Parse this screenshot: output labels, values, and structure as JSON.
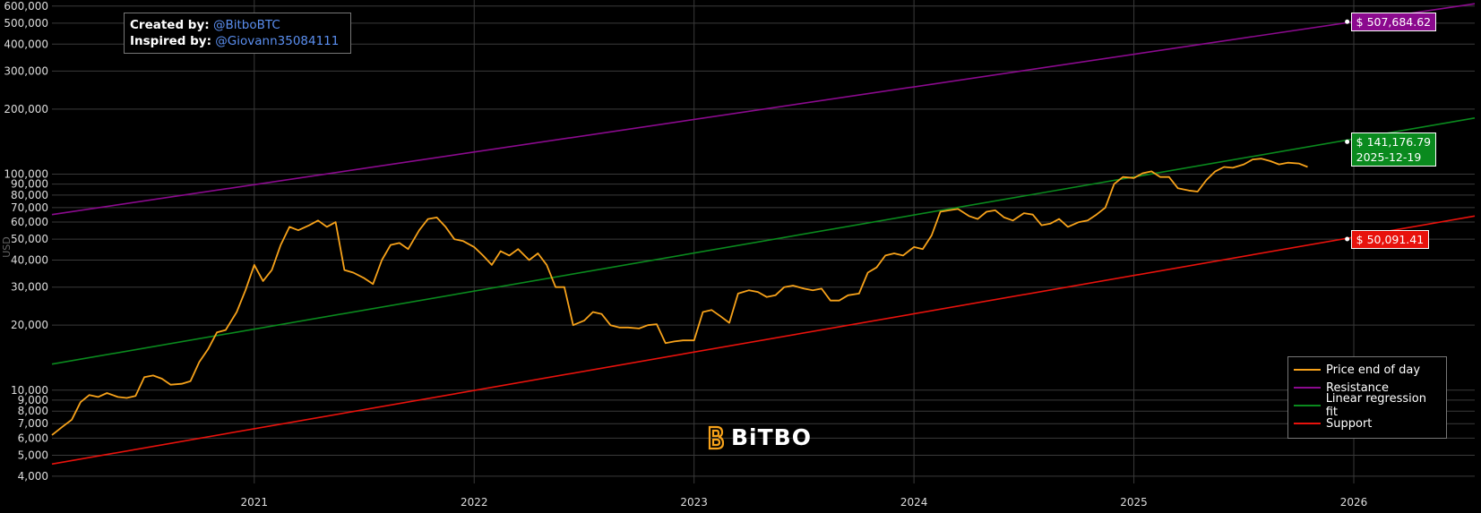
{
  "credits": {
    "created_label": "Created by:",
    "created_handle": "@BitboBTC",
    "inspired_label": "Inspired by:",
    "inspired_handle": "@Giovann35084111"
  },
  "brand": {
    "logo_text": "BiTBO"
  },
  "tags": {
    "resistance": "$ 507,684.62",
    "regression_value": "$ 141,176.79",
    "regression_date": "2025-12-19",
    "support": "$ 50,091.41"
  },
  "colors": {
    "price": "#f7a21a",
    "resistance": "#8b0a8e",
    "regression": "#0a8a1e",
    "support": "#e8120c",
    "grid": "#3a3a3a"
  },
  "chart_data": {
    "type": "line",
    "title": "",
    "xlabel": "",
    "ylabel": "USD",
    "yscale": "log",
    "xlim": [
      2020.08,
      2026.55
    ],
    "ylim": [
      3700,
      640000
    ],
    "grid": true,
    "legend_position": "bottom-right",
    "x_ticks": [
      "2021",
      "2022",
      "2023",
      "2024",
      "2025",
      "2026"
    ],
    "y_ticks": [
      "4,000",
      "5,000",
      "6,000",
      "7,000",
      "8,000",
      "9,000",
      "10,000",
      "20,000",
      "30,000",
      "40,000",
      "50,000",
      "60,000",
      "70,000",
      "80,000",
      "90,000",
      "100,000",
      "200,000",
      "300,000",
      "400,000",
      "500,000",
      "600,000"
    ],
    "legend": [
      "Price end of day",
      "Resistance",
      "Linear regression fit",
      "Support"
    ],
    "series": [
      {
        "name": "Price end of day",
        "x": [
          2020.08,
          2020.13,
          2020.17,
          2020.21,
          2020.25,
          2020.29,
          2020.33,
          2020.38,
          2020.42,
          2020.46,
          2020.5,
          2020.54,
          2020.58,
          2020.62,
          2020.67,
          2020.71,
          2020.75,
          2020.79,
          2020.83,
          2020.87,
          2020.92,
          2020.96,
          2021.0,
          2021.04,
          2021.08,
          2021.12,
          2021.16,
          2021.2,
          2021.25,
          2021.29,
          2021.33,
          2021.37,
          2021.41,
          2021.45,
          2021.5,
          2021.54,
          2021.58,
          2021.62,
          2021.66,
          2021.7,
          2021.75,
          2021.79,
          2021.83,
          2021.87,
          2021.91,
          2021.95,
          2022.0,
          2022.04,
          2022.08,
          2022.12,
          2022.16,
          2022.2,
          2022.25,
          2022.29,
          2022.33,
          2022.37,
          2022.41,
          2022.45,
          2022.5,
          2022.54,
          2022.58,
          2022.62,
          2022.66,
          2022.7,
          2022.75,
          2022.79,
          2022.83,
          2022.87,
          2022.91,
          2022.95,
          2023.0,
          2023.04,
          2023.08,
          2023.12,
          2023.16,
          2023.2,
          2023.25,
          2023.29,
          2023.33,
          2023.37,
          2023.41,
          2023.45,
          2023.5,
          2023.54,
          2023.58,
          2023.62,
          2023.66,
          2023.7,
          2023.75,
          2023.79,
          2023.83,
          2023.87,
          2023.91,
          2023.95,
          2024.0,
          2024.04,
          2024.08,
          2024.12,
          2024.16,
          2024.2,
          2024.25,
          2024.29,
          2024.33,
          2024.37,
          2024.41,
          2024.45,
          2024.5,
          2024.54,
          2024.58,
          2024.62,
          2024.66,
          2024.7,
          2024.75,
          2024.79,
          2024.83,
          2024.87,
          2024.91,
          2024.95,
          2025.0,
          2025.04,
          2025.08,
          2025.12,
          2025.16,
          2025.2,
          2025.25,
          2025.29,
          2025.33,
          2025.37,
          2025.41,
          2025.45,
          2025.5,
          2025.54,
          2025.58,
          2025.62,
          2025.66,
          2025.7,
          2025.75,
          2025.79
        ],
        "y": [
          6200,
          6800,
          7300,
          8800,
          9500,
          9300,
          9700,
          9300,
          9200,
          9400,
          11500,
          11700,
          11300,
          10600,
          10700,
          11000,
          13500,
          15500,
          18500,
          19000,
          23000,
          29000,
          38000,
          32000,
          36000,
          47000,
          57000,
          55000,
          58000,
          61000,
          57000,
          60000,
          36000,
          35000,
          33000,
          31000,
          40000,
          47000,
          48000,
          45000,
          55000,
          62000,
          63000,
          57000,
          50000,
          49000,
          46000,
          42000,
          38000,
          44000,
          42000,
          45000,
          40000,
          43000,
          38000,
          30000,
          30000,
          20000,
          21000,
          23000,
          22500,
          20000,
          19500,
          19500,
          19300,
          20000,
          20200,
          16500,
          16800,
          17000,
          17000,
          23000,
          23500,
          22000,
          20500,
          28000,
          29000,
          28500,
          27000,
          27500,
          30000,
          30500,
          29500,
          29000,
          29500,
          26000,
          26000,
          27500,
          28000,
          35000,
          37000,
          42000,
          43000,
          42000,
          46000,
          45000,
          52000,
          67000,
          68000,
          69000,
          64000,
          62000,
          67000,
          68000,
          63000,
          61000,
          66000,
          65000,
          58000,
          59000,
          62000,
          57000,
          60000,
          61000,
          65000,
          70000,
          90000,
          97000,
          96000,
          101000,
          103000,
          97000,
          97000,
          86000,
          84000,
          83000,
          94000,
          103000,
          108000,
          107000,
          111000,
          117000,
          118000,
          115000,
          111000,
          113000,
          112000,
          108000
        ]
      },
      {
        "name": "Resistance",
        "x": [
          2020.08,
          2026.55
        ],
        "y": [
          65000,
          615000
        ]
      },
      {
        "name": "Linear regression fit",
        "x": [
          2020.08,
          2026.55
        ],
        "y": [
          13200,
          182000
        ]
      },
      {
        "name": "Support",
        "x": [
          2020.08,
          2026.55
        ],
        "y": [
          4550,
          64000
        ]
      }
    ],
    "annotations": [
      {
        "x": 2025.97,
        "y": 507684.62,
        "text": "$ 507,684.62",
        "series": "Resistance"
      },
      {
        "x": 2025.97,
        "y": 141176.79,
        "text": "$ 141,176.79",
        "date": "2025-12-19",
        "series": "Linear regression fit"
      },
      {
        "x": 2025.97,
        "y": 50091.41,
        "text": "$ 50,091.41",
        "series": "Support"
      }
    ]
  }
}
